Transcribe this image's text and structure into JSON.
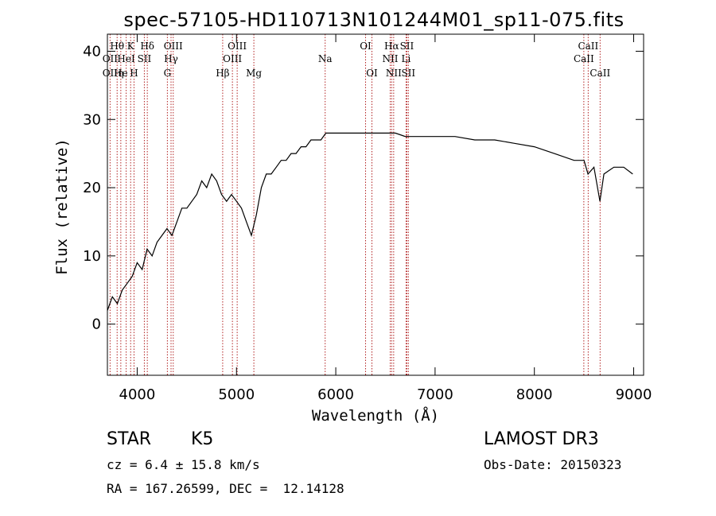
{
  "chart_data": {
    "type": "line",
    "title": "spec-57105-HD110713N101244M01_sp11-075.fits",
    "xlabel": "Wavelength (Å)",
    "ylabel": "Flux (relative)",
    "xlim": [
      3700,
      9100
    ],
    "ylim": [
      -7.5,
      42.5
    ],
    "xticks": [
      4000,
      5000,
      6000,
      7000,
      8000,
      9000
    ],
    "yticks": [
      0,
      10,
      20,
      30,
      40
    ],
    "series": [
      {
        "name": "spectrum",
        "x": [
          3700,
          3750,
          3800,
          3850,
          3900,
          3950,
          4000,
          4050,
          4100,
          4150,
          4200,
          4250,
          4300,
          4350,
          4400,
          4450,
          4500,
          4550,
          4600,
          4650,
          4700,
          4750,
          4800,
          4850,
          4900,
          4950,
          5000,
          5050,
          5100,
          5150,
          5200,
          5250,
          5300,
          5350,
          5400,
          5450,
          5500,
          5550,
          5600,
          5650,
          5700,
          5750,
          5800,
          5850,
          5900,
          6000,
          6100,
          6200,
          6300,
          6400,
          6500,
          6600,
          6700,
          6800,
          7000,
          7200,
          7400,
          7600,
          7800,
          8000,
          8200,
          8400,
          8500,
          8540,
          8600,
          8660,
          8700,
          8800,
          8900,
          8990
        ],
        "y": [
          2,
          4,
          3,
          5,
          6,
          7,
          9,
          8,
          11,
          10,
          12,
          13,
          14,
          13,
          15,
          17,
          17,
          18,
          19,
          21,
          20,
          22,
          21,
          19,
          18,
          19,
          18,
          17,
          15,
          13,
          16,
          20,
          22,
          22,
          23,
          24,
          24,
          25,
          25,
          26,
          26,
          27,
          27,
          27,
          28,
          28,
          28,
          28,
          28,
          28,
          28,
          28,
          27.5,
          27.5,
          27.5,
          27.5,
          27,
          27,
          26.5,
          26,
          25,
          24,
          24,
          22,
          23,
          18,
          22,
          23,
          23,
          22
        ]
      }
    ],
    "spectral_lines": [
      {
        "label": "Hθ",
        "x": 3798,
        "row": 1
      },
      {
        "label": "OII",
        "x": 3727,
        "row": 2
      },
      {
        "label": "OII",
        "x": 3727,
        "row": 3
      },
      {
        "label": "He",
        "x": 3835,
        "row": 3
      },
      {
        "label": "η",
        "x": 3835,
        "row": 3
      },
      {
        "label": "K",
        "x": 3934,
        "row": 1
      },
      {
        "label": "HeI",
        "x": 3889,
        "row": 2
      },
      {
        "label": "SII",
        "x": 4072,
        "row": 2
      },
      {
        "label": "H",
        "x": 3968,
        "row": 3
      },
      {
        "label": "Hδ",
        "x": 4102,
        "row": 1
      },
      {
        "label": "OIII",
        "x": 4363,
        "row": 1
      },
      {
        "label": "Hγ",
        "x": 4341,
        "row": 2
      },
      {
        "label": "G",
        "x": 4304,
        "row": 3
      },
      {
        "label": "OIII",
        "x": 5007,
        "row": 1
      },
      {
        "label": "OIII",
        "x": 4959,
        "row": 2
      },
      {
        "label": "Hβ",
        "x": 4861,
        "row": 3
      },
      {
        "label": "Mg",
        "x": 5175,
        "row": 3
      },
      {
        "label": "Na",
        "x": 5893,
        "row": 2
      },
      {
        "label": "OI",
        "x": 6300,
        "row": 1
      },
      {
        "label": "OI",
        "x": 6364,
        "row": 3
      },
      {
        "label": "Hα",
        "x": 6563,
        "row": 1
      },
      {
        "label": "SII",
        "x": 6716,
        "row": 1
      },
      {
        "label": "NII",
        "x": 6548,
        "row": 2
      },
      {
        "label": "Li",
        "x": 6708,
        "row": 2
      },
      {
        "label": "NII",
        "x": 6583,
        "row": 3
      },
      {
        "label": "SII",
        "x": 6731,
        "row": 3
      },
      {
        "label": "CaII",
        "x": 8542,
        "row": 1
      },
      {
        "label": "CaII",
        "x": 8498,
        "row": 2
      },
      {
        "label": "CaII",
        "x": 8662,
        "row": 3
      }
    ],
    "line_color": "#000000",
    "marker_color": "#b22222"
  },
  "info": {
    "class_label": "STAR",
    "subclass": "K5",
    "survey": "LAMOST DR3",
    "cz": "cz = 6.4 ± 15.8 km/s",
    "obs_date": "Obs-Date: 20150323",
    "coords": "RA = 167.26599, DEC =  12.14128"
  }
}
